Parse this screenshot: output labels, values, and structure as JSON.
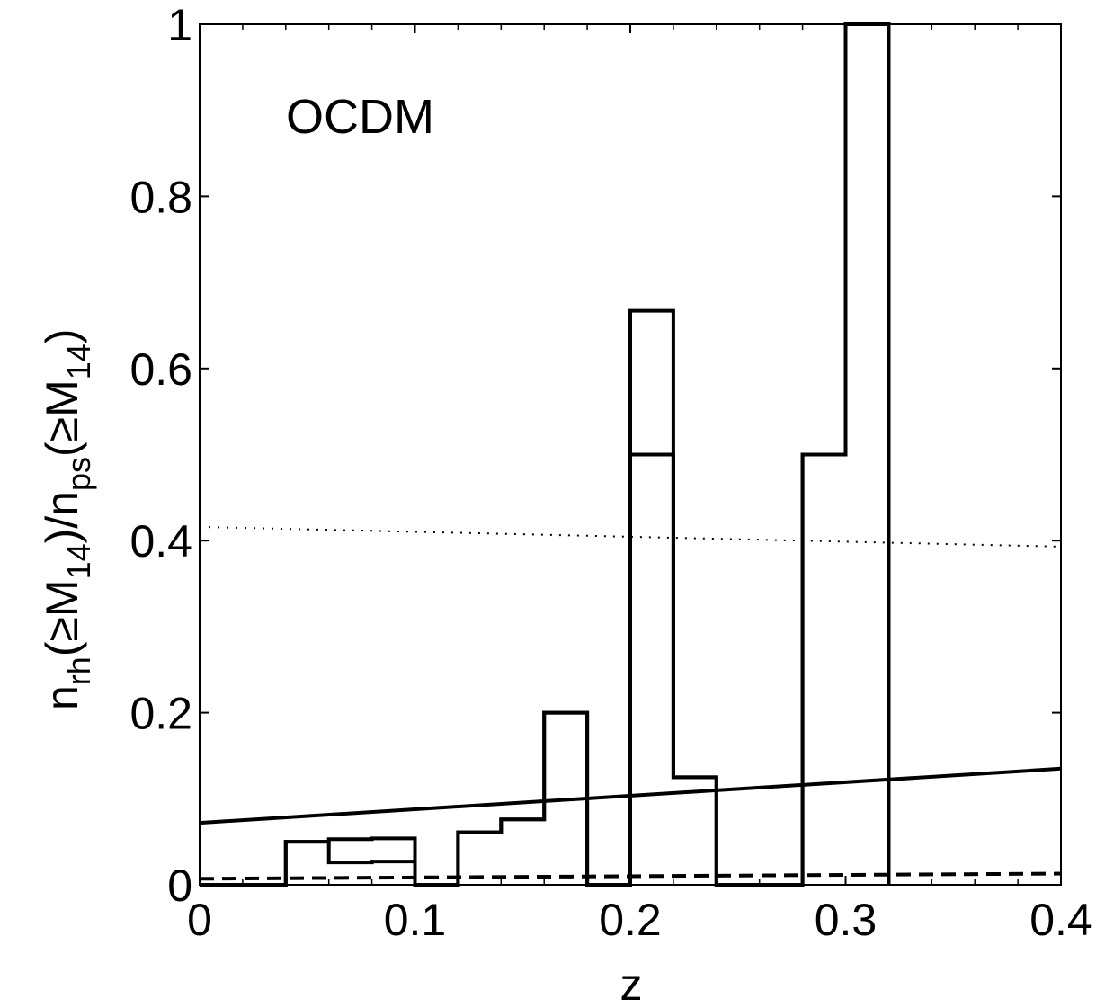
{
  "chart_data": {
    "type": "line",
    "annotation": "OCDM",
    "xlabel": "z",
    "ylabel": {
      "n": "n",
      "rh": "rh",
      "open": "(≥M",
      "sub14a": "14",
      "mid": ")/n",
      "ps": "ps",
      "open2": "(≥M",
      "sub14b": "14",
      "close": ")"
    },
    "xlim": [
      0,
      0.4
    ],
    "ylim": [
      0,
      1
    ],
    "xticks": [
      {
        "value": 0,
        "label": "0"
      },
      {
        "value": 0.1,
        "label": "0.1"
      },
      {
        "value": 0.2,
        "label": "0.2"
      },
      {
        "value": 0.3,
        "label": "0.3"
      },
      {
        "value": 0.4,
        "label": "0.4"
      }
    ],
    "yticks": [
      {
        "value": 0,
        "label": "0"
      },
      {
        "value": 0.2,
        "label": "0.2"
      },
      {
        "value": 0.4,
        "label": "0.4"
      },
      {
        "value": 0.6,
        "label": "0.6"
      },
      {
        "value": 0.8,
        "label": "0.8"
      },
      {
        "value": 1,
        "label": "1"
      }
    ],
    "grid": false,
    "colors": {
      "line": "#000000",
      "background": "#ffffff"
    },
    "series": [
      {
        "style": "solid",
        "kind": "histogram",
        "edges": [
          0,
          0.04,
          0.06,
          0.08,
          0.1,
          0.12,
          0.14,
          0.16,
          0.18,
          0.2,
          0.22,
          0.24,
          0.26,
          0.28,
          0.3,
          0.32
        ],
        "values": [
          0,
          0.05,
          0.053,
          0.054,
          0,
          0.061,
          0.076,
          0.2,
          0,
          0.667,
          0.125,
          0,
          0,
          0.5,
          1.0
        ]
      },
      {
        "style": "solid",
        "kind": "histogram",
        "edges": [
          0,
          0.04,
          0.06,
          0.08,
          0.1,
          0.12,
          0.14,
          0.16,
          0.18,
          0.2,
          0.22,
          0.24,
          0.26,
          0.28,
          0.3,
          0.32
        ],
        "values": [
          0,
          0.05,
          0.026,
          0.027,
          0,
          0.061,
          0.076,
          0.2,
          0,
          0.5,
          0.125,
          0,
          0,
          0.5,
          1.0
        ]
      },
      {
        "style": "solid",
        "kind": "line",
        "x": [
          0,
          0.4
        ],
        "y": [
          0.072,
          0.135
        ]
      },
      {
        "style": "dashed",
        "kind": "line",
        "x": [
          0,
          0.4
        ],
        "y": [
          0.007,
          0.013
        ]
      },
      {
        "style": "dotted",
        "kind": "line",
        "x": [
          0,
          0.4
        ],
        "y": [
          0.416,
          0.393
        ]
      }
    ]
  }
}
